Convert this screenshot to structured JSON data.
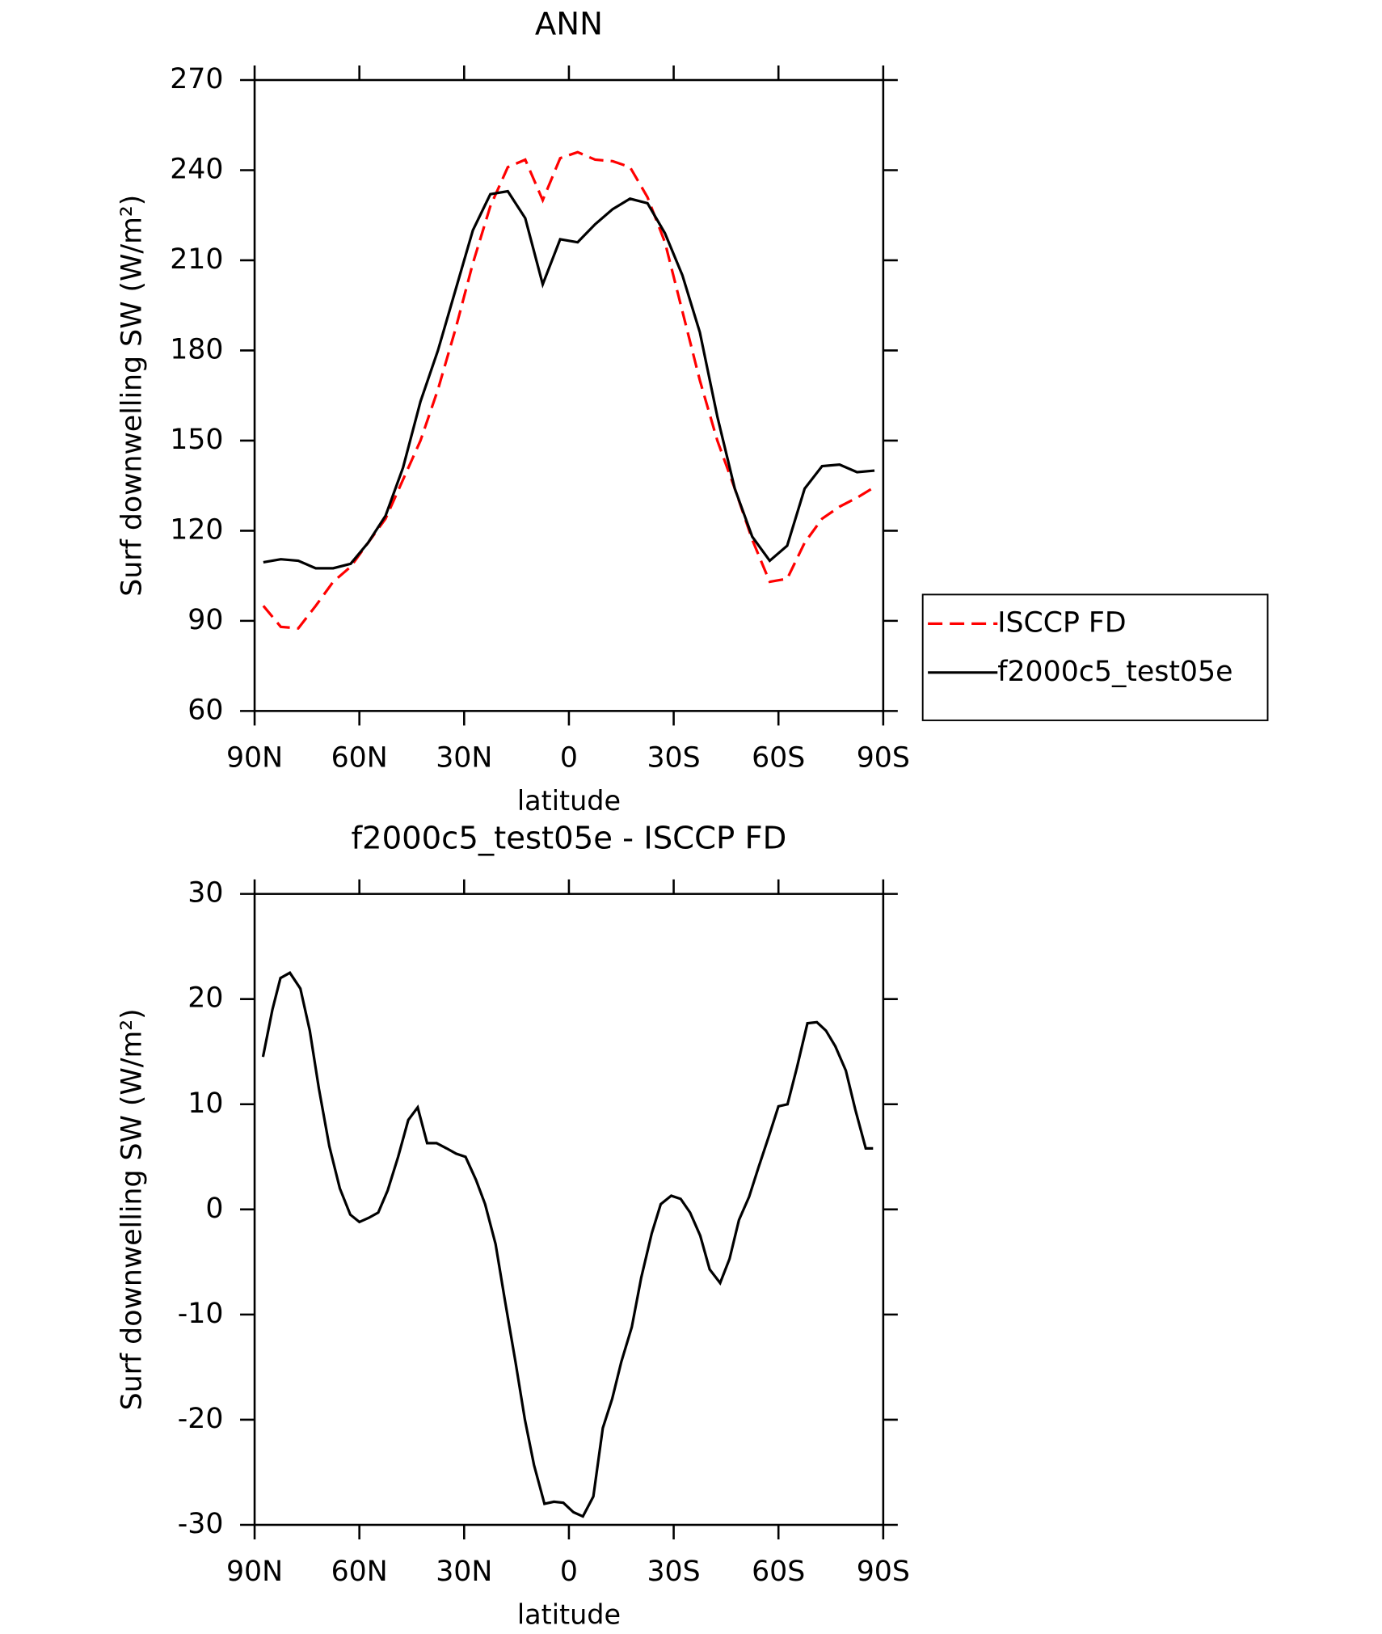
{
  "chart_data": [
    {
      "type": "line",
      "title": "ANN",
      "xlabel": "latitude",
      "ylabel": "Surf downwelling SW (W/m²)",
      "x": [
        87.5,
        82.5,
        77.5,
        72.5,
        67.5,
        62.5,
        57.5,
        52.5,
        47.5,
        42.5,
        37.5,
        32.5,
        27.5,
        22.5,
        17.5,
        12.5,
        7.5,
        2.5,
        -2.5,
        -7.5,
        -12.5,
        -17.5,
        -22.5,
        -27.5,
        -32.5,
        -37.5,
        -42.5,
        -47.5,
        -52.5,
        -57.5,
        -62.5,
        -67.5,
        -72.5,
        -77.5,
        -82.5,
        -87.5
      ],
      "series": [
        {
          "name": "ISCCP FD",
          "color": "#ff0000",
          "linestyle": "dashed",
          "values": [
            95,
            88,
            87.5,
            95,
            103,
            108,
            116,
            124,
            137,
            150,
            167,
            187,
            209,
            228,
            241,
            243.5,
            230,
            244,
            246,
            243.5,
            243,
            241,
            231,
            216,
            193,
            170,
            150,
            134,
            117,
            103,
            104,
            116,
            124,
            128,
            131,
            134.5
          ]
        },
        {
          "name": "f2000c5_test05e",
          "color": "#000000",
          "linestyle": "solid",
          "values": [
            109.5,
            110.5,
            110,
            107.5,
            107.5,
            109,
            116,
            125,
            141,
            163,
            180,
            200,
            220,
            232,
            233,
            224,
            202,
            217,
            216,
            222,
            227,
            230.5,
            229,
            219,
            205,
            186,
            158,
            134,
            118,
            110,
            115,
            134,
            141.5,
            142,
            139.5,
            140
          ]
        }
      ],
      "xlim": [
        90,
        -90
      ],
      "xticks": [
        {
          "value": 90,
          "label": "90N"
        },
        {
          "value": 60,
          "label": "60N"
        },
        {
          "value": 30,
          "label": "30N"
        },
        0,
        {
          "value": -30,
          "label": "30S"
        },
        {
          "value": -60,
          "label": "60S"
        },
        {
          "value": -90,
          "label": "90S"
        }
      ],
      "ylim": [
        60,
        270
      ],
      "yticks": [
        60,
        90,
        120,
        150,
        180,
        210,
        240,
        270
      ],
      "legend": "right"
    },
    {
      "type": "line",
      "title": "f2000c5_test05e - ISCCP FD",
      "xlabel": "latitude",
      "ylabel": "Surf downwelling SW (W/m²)",
      "x": [
        87.6,
        84.9,
        82.6,
        79.9,
        76.9,
        74.2,
        71.6,
        68.6,
        65.6,
        62.6,
        60.0,
        57.3,
        54.6,
        51.9,
        48.9,
        46.0,
        43.3,
        40.6,
        37.9,
        35.0,
        32.3,
        29.6,
        26.6,
        24.0,
        21.0,
        18.3,
        15.3,
        12.6,
        10.0,
        7.0,
        4.3,
        1.6,
        -1.3,
        -4.0,
        -7.0,
        -9.7,
        -12.4,
        -15.0,
        -18.0,
        -20.7,
        -23.7,
        -26.3,
        -29.3,
        -32.0,
        -34.7,
        -37.6,
        -40.3,
        -43.3,
        -46.0,
        -48.7,
        -51.6,
        -54.3,
        -57.3,
        -60.0,
        -62.6,
        -65.3,
        -68.3,
        -71.0,
        -73.6,
        -76.3,
        -79.3,
        -82.0,
        -85.0,
        -87.1
      ],
      "series": [
        {
          "name": "f2000c5_test05e - ISCCP FD",
          "color": "#000000",
          "linestyle": "solid",
          "values": [
            14.5,
            19,
            22,
            22.5,
            21,
            17,
            11.5,
            6,
            2,
            -0.5,
            -1.2,
            -0.8,
            -0.3,
            1.8,
            5,
            8.5,
            9.7,
            6.3,
            6.3,
            5.8,
            5.3,
            5,
            2.8,
            0.5,
            -3.3,
            -8.7,
            -14.5,
            -20,
            -24.3,
            -28,
            -27.8,
            -27.9,
            -28.8,
            -29.2,
            -27.3,
            -20.8,
            -18,
            -14.5,
            -11.2,
            -6.5,
            -2.3,
            0.5,
            1.3,
            1,
            -0.3,
            -2.5,
            -5.7,
            -7,
            -4.7,
            -1,
            1.2,
            4,
            7,
            9.8,
            10,
            13.5,
            17.7,
            17.8,
            17,
            15.5,
            13.2,
            9.5,
            5.8,
            5.8
          ]
        }
      ],
      "xlim": [
        90,
        -90
      ],
      "xticks": [
        {
          "value": 90,
          "label": "90N"
        },
        {
          "value": 60,
          "label": "60N"
        },
        {
          "value": 30,
          "label": "30N"
        },
        0,
        {
          "value": -30,
          "label": "30S"
        },
        {
          "value": -60,
          "label": "60S"
        },
        {
          "value": -90,
          "label": "90S"
        }
      ],
      "ylim": [
        -30,
        30
      ],
      "yticks": [
        -30,
        -20,
        -10,
        0,
        10,
        20,
        30
      ]
    }
  ]
}
